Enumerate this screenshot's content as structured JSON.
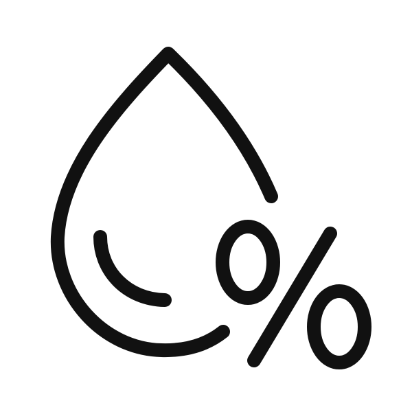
{
  "icon": {
    "name": "humidity-percent-icon",
    "stroke_color": "#111111",
    "background_color": "#ffffff"
  }
}
